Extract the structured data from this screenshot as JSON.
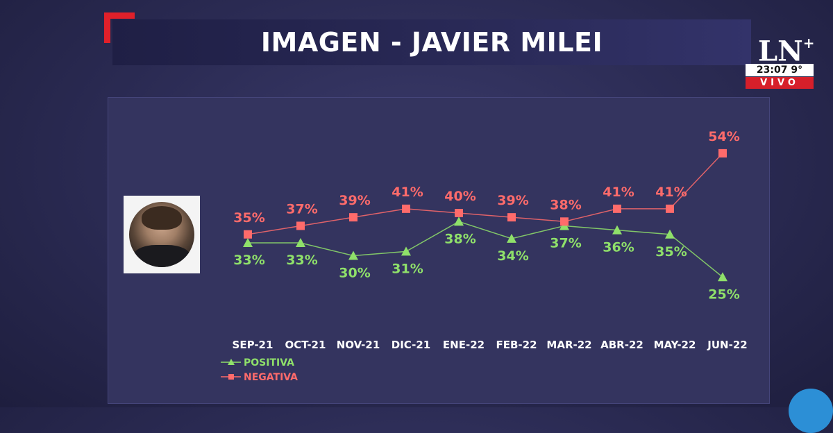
{
  "header": {
    "title": "IMAGEN -  JAVIER MILEI"
  },
  "channel": {
    "logo": "LN",
    "logo_plus": "+",
    "clock": "23:07  9°",
    "live_label": "VIVO"
  },
  "chart_data": {
    "type": "line",
    "title": "IMAGEN -  JAVIER MILEI",
    "categories": [
      "SEP-21",
      "OCT-21",
      "NOV-21",
      "DIC-21",
      "ENE-22",
      "FEB-22",
      "MAR-22",
      "ABR-22",
      "MAY-22",
      "JUN-22"
    ],
    "series": [
      {
        "name": "POSITIVA",
        "values": [
          33,
          33,
          30,
          31,
          38,
          34,
          37,
          36,
          35,
          25
        ],
        "labels": [
          "33%",
          "33%",
          "30%",
          "31%",
          "38%",
          "34%",
          "37%",
          "36%",
          "35%",
          "25%"
        ],
        "color": "#8fe06a",
        "marker": "triangle"
      },
      {
        "name": "NEGATIVA",
        "values": [
          35,
          37,
          39,
          41,
          40,
          39,
          38,
          41,
          41,
          54
        ],
        "labels": [
          "35%",
          "37%",
          "39%",
          "41%",
          "40%",
          "39%",
          "38%",
          "41%",
          "41%",
          "54%"
        ],
        "color": "#ff6b6b",
        "marker": "square"
      }
    ],
    "legend": {
      "position": "bottom-left"
    }
  }
}
